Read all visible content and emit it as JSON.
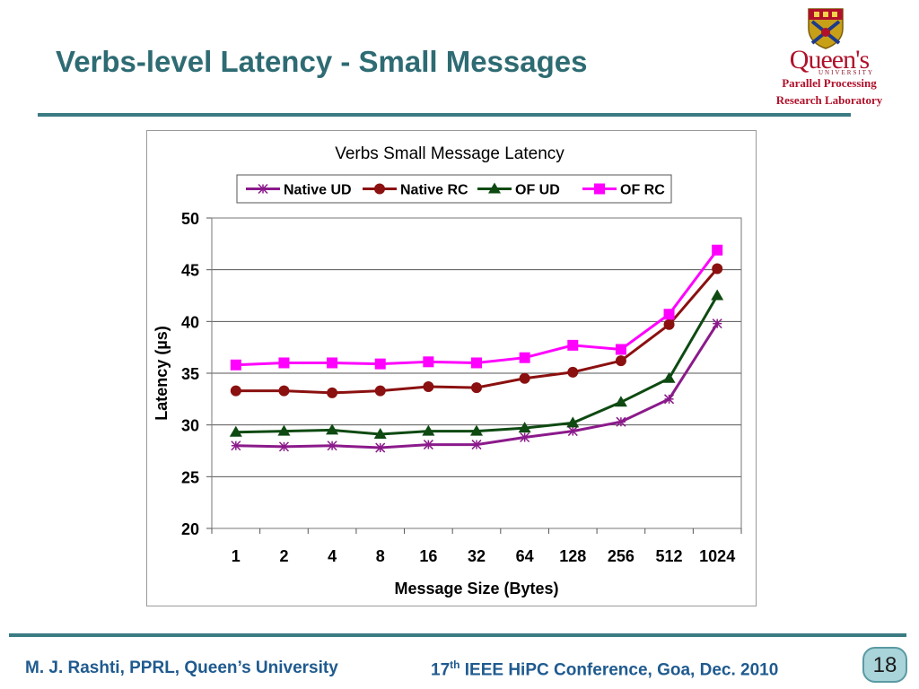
{
  "slide": {
    "title": "Verbs-level Latency - Small Messages",
    "logo": {
      "wordmark": "Queen's",
      "university": "UNIVERSITY",
      "lab_line1": "Parallel Processing",
      "lab_line2": "Research Laboratory"
    },
    "footer": {
      "author": "M. J. Rashti, PPRL, Queen’s University",
      "conf_number": "17",
      "conf_suffix": "th",
      "conf_rest": " IEEE HiPC Conference, Goa, Dec. 2010",
      "page_number": "18"
    },
    "colors": {
      "title": "#2e6b73",
      "rule": "#3a7b83",
      "footer_text": "#1f5a8f",
      "badge_fill": "#a9d4da",
      "logo_red": "#b0112a"
    }
  },
  "chart_data": {
    "type": "line",
    "title": "Verbs Small Message Latency",
    "xlabel": "Message Size (Bytes)",
    "ylabel": "Latency (µs)",
    "categories": [
      "1",
      "2",
      "4",
      "8",
      "16",
      "32",
      "64",
      "128",
      "256",
      "512",
      "1024"
    ],
    "ylim": [
      20,
      50
    ],
    "yticks": [
      20,
      25,
      30,
      35,
      40,
      45,
      50
    ],
    "grid": "horizontal",
    "legend_position": "top",
    "series": [
      {
        "name": "Native UD",
        "marker": "star",
        "color": "#8b1a8b",
        "values": [
          28.0,
          27.9,
          28.0,
          27.8,
          28.1,
          28.1,
          28.8,
          29.4,
          30.3,
          32.5,
          39.8
        ]
      },
      {
        "name": "Native RC",
        "marker": "circle",
        "color": "#8b1010",
        "values": [
          33.3,
          33.3,
          33.1,
          33.3,
          33.7,
          33.6,
          34.5,
          35.1,
          36.2,
          39.7,
          45.1
        ]
      },
      {
        "name": "OF UD",
        "marker": "triangle",
        "color": "#0e4a12",
        "values": [
          29.3,
          29.4,
          29.5,
          29.1,
          29.4,
          29.4,
          29.7,
          30.2,
          32.2,
          34.5,
          42.5
        ]
      },
      {
        "name": "OF RC",
        "marker": "square",
        "color": "#ff00ff",
        "values": [
          35.8,
          36.0,
          36.0,
          35.9,
          36.1,
          36.0,
          36.5,
          37.7,
          37.3,
          40.7,
          46.9
        ]
      }
    ]
  }
}
